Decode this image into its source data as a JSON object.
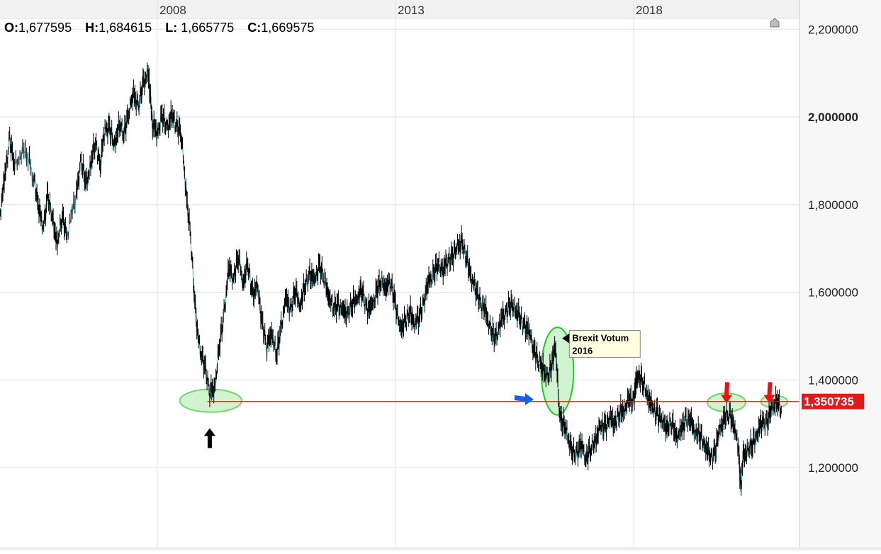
{
  "ohlc": {
    "open_label": "O:",
    "open_value": "1,677595",
    "high_label": "H:",
    "high_value": "1,684615",
    "low_label": "L:",
    "low_value": "1,665775",
    "close_label": "C:",
    "close_value": "1,669575"
  },
  "chart_data": {
    "type": "line",
    "x_ticks": [
      "2008",
      "2013",
      "2018"
    ],
    "y_ticks": [
      "2,200000",
      "2,000000",
      "1,800000",
      "1,600000",
      "1,400000",
      "1,200000"
    ],
    "y_tick_values": [
      2.2,
      2.0,
      1.8,
      1.6,
      1.4,
      1.2
    ],
    "bold_y_tick": "2,000000",
    "ylim": [
      1.05,
      2.25
    ],
    "xlim": [
      2004.7,
      2021.4
    ],
    "grid": true,
    "series": [
      {
        "color": "#000000",
        "points": [
          [
            2004.7,
            1.78
          ],
          [
            2004.8,
            1.86
          ],
          [
            2004.9,
            1.95
          ],
          [
            2005.0,
            1.88
          ],
          [
            2005.2,
            1.93
          ],
          [
            2005.4,
            1.86
          ],
          [
            2005.5,
            1.8
          ],
          [
            2005.6,
            1.74
          ],
          [
            2005.7,
            1.82
          ],
          [
            2005.8,
            1.76
          ],
          [
            2005.9,
            1.71
          ],
          [
            2006.0,
            1.77
          ],
          [
            2006.1,
            1.73
          ],
          [
            2006.3,
            1.82
          ],
          [
            2006.4,
            1.9
          ],
          [
            2006.5,
            1.84
          ],
          [
            2006.6,
            1.89
          ],
          [
            2006.7,
            1.94
          ],
          [
            2006.8,
            1.89
          ],
          [
            2006.9,
            1.97
          ],
          [
            2007.0,
            1.97
          ],
          [
            2007.1,
            1.93
          ],
          [
            2007.2,
            1.98
          ],
          [
            2007.3,
            1.96
          ],
          [
            2007.4,
            2.01
          ],
          [
            2007.5,
            2.05
          ],
          [
            2007.6,
            2.02
          ],
          [
            2007.7,
            2.07
          ],
          [
            2007.8,
            2.1
          ],
          [
            2007.85,
            2.05
          ],
          [
            2007.9,
            1.98
          ],
          [
            2008.0,
            1.96
          ],
          [
            2008.1,
            2.0
          ],
          [
            2008.2,
            1.97
          ],
          [
            2008.3,
            2.0
          ],
          [
            2008.4,
            1.98
          ],
          [
            2008.5,
            1.96
          ],
          [
            2008.6,
            1.83
          ],
          [
            2008.7,
            1.72
          ],
          [
            2008.8,
            1.55
          ],
          [
            2008.9,
            1.46
          ],
          [
            2009.0,
            1.43
          ],
          [
            2009.1,
            1.37
          ],
          [
            2009.2,
            1.38
          ],
          [
            2009.3,
            1.47
          ],
          [
            2009.4,
            1.55
          ],
          [
            2009.5,
            1.65
          ],
          [
            2009.6,
            1.63
          ],
          [
            2009.7,
            1.68
          ],
          [
            2009.8,
            1.62
          ],
          [
            2009.9,
            1.66
          ],
          [
            2010.0,
            1.59
          ],
          [
            2010.1,
            1.61
          ],
          [
            2010.2,
            1.53
          ],
          [
            2010.3,
            1.47
          ],
          [
            2010.4,
            1.51
          ],
          [
            2010.5,
            1.45
          ],
          [
            2010.6,
            1.52
          ],
          [
            2010.7,
            1.58
          ],
          [
            2010.8,
            1.56
          ],
          [
            2010.9,
            1.6
          ],
          [
            2011.0,
            1.57
          ],
          [
            2011.1,
            1.61
          ],
          [
            2011.2,
            1.64
          ],
          [
            2011.3,
            1.62
          ],
          [
            2011.4,
            1.66
          ],
          [
            2011.5,
            1.63
          ],
          [
            2011.6,
            1.59
          ],
          [
            2011.7,
            1.56
          ],
          [
            2011.8,
            1.57
          ],
          [
            2011.9,
            1.55
          ],
          [
            2012.0,
            1.55
          ],
          [
            2012.1,
            1.57
          ],
          [
            2012.2,
            1.59
          ],
          [
            2012.3,
            1.6
          ],
          [
            2012.4,
            1.56
          ],
          [
            2012.5,
            1.56
          ],
          [
            2012.6,
            1.6
          ],
          [
            2012.7,
            1.62
          ],
          [
            2012.8,
            1.61
          ],
          [
            2012.9,
            1.62
          ],
          [
            2013.0,
            1.57
          ],
          [
            2013.1,
            1.51
          ],
          [
            2013.2,
            1.53
          ],
          [
            2013.3,
            1.55
          ],
          [
            2013.4,
            1.53
          ],
          [
            2013.5,
            1.54
          ],
          [
            2013.6,
            1.58
          ],
          [
            2013.7,
            1.62
          ],
          [
            2013.8,
            1.64
          ],
          [
            2013.9,
            1.66
          ],
          [
            2014.0,
            1.65
          ],
          [
            2014.1,
            1.67
          ],
          [
            2014.2,
            1.68
          ],
          [
            2014.3,
            1.7
          ],
          [
            2014.4,
            1.71
          ],
          [
            2014.5,
            1.67
          ],
          [
            2014.6,
            1.63
          ],
          [
            2014.7,
            1.6
          ],
          [
            2014.8,
            1.57
          ],
          [
            2014.9,
            1.55
          ],
          [
            2015.0,
            1.51
          ],
          [
            2015.1,
            1.49
          ],
          [
            2015.2,
            1.53
          ],
          [
            2015.3,
            1.55
          ],
          [
            2015.4,
            1.57
          ],
          [
            2015.5,
            1.56
          ],
          [
            2015.6,
            1.54
          ],
          [
            2015.7,
            1.52
          ],
          [
            2015.8,
            1.51
          ],
          [
            2015.9,
            1.47
          ],
          [
            2016.0,
            1.44
          ],
          [
            2016.1,
            1.42
          ],
          [
            2016.2,
            1.4
          ],
          [
            2016.3,
            1.44
          ],
          [
            2016.35,
            1.48
          ],
          [
            2016.45,
            1.32
          ],
          [
            2016.5,
            1.3
          ],
          [
            2016.6,
            1.28
          ],
          [
            2016.7,
            1.23
          ],
          [
            2016.8,
            1.23
          ],
          [
            2016.9,
            1.25
          ],
          [
            2017.0,
            1.22
          ],
          [
            2017.1,
            1.24
          ],
          [
            2017.2,
            1.26
          ],
          [
            2017.3,
            1.29
          ],
          [
            2017.4,
            1.29
          ],
          [
            2017.5,
            1.31
          ],
          [
            2017.6,
            1.3
          ],
          [
            2017.7,
            1.32
          ],
          [
            2017.8,
            1.33
          ],
          [
            2017.9,
            1.35
          ],
          [
            2018.0,
            1.35
          ],
          [
            2018.05,
            1.39
          ],
          [
            2018.1,
            1.41
          ],
          [
            2018.2,
            1.39
          ],
          [
            2018.3,
            1.36
          ],
          [
            2018.4,
            1.33
          ],
          [
            2018.5,
            1.32
          ],
          [
            2018.6,
            1.3
          ],
          [
            2018.7,
            1.29
          ],
          [
            2018.8,
            1.3
          ],
          [
            2018.9,
            1.27
          ],
          [
            2019.0,
            1.28
          ],
          [
            2019.1,
            1.31
          ],
          [
            2019.2,
            1.3
          ],
          [
            2019.3,
            1.28
          ],
          [
            2019.4,
            1.27
          ],
          [
            2019.5,
            1.25
          ],
          [
            2019.6,
            1.22
          ],
          [
            2019.7,
            1.23
          ],
          [
            2019.8,
            1.28
          ],
          [
            2019.9,
            1.31
          ],
          [
            2020.0,
            1.32
          ],
          [
            2020.1,
            1.3
          ],
          [
            2020.2,
            1.24
          ],
          [
            2020.25,
            1.15
          ],
          [
            2020.3,
            1.22
          ],
          [
            2020.4,
            1.24
          ],
          [
            2020.5,
            1.25
          ],
          [
            2020.6,
            1.28
          ],
          [
            2020.7,
            1.3
          ],
          [
            2020.8,
            1.3
          ],
          [
            2020.9,
            1.33
          ],
          [
            2021.0,
            1.35
          ],
          [
            2021.1,
            1.33
          ]
        ]
      }
    ],
    "horizontal_line": {
      "value": 1.350735,
      "label": "1,350735",
      "color": "#dd1111"
    },
    "annotations": [
      {
        "type": "ellipse",
        "cx": 2009.12,
        "cy": 1.3525,
        "rx": 0.65,
        "ry": 0.026,
        "stroke": "#6fd66f",
        "fill": "#c8f2c8"
      },
      {
        "type": "ellipse",
        "cx": 2016.4,
        "cy": 1.42,
        "rx": 0.34,
        "ry": 0.1,
        "stroke": "#1ecf1e",
        "fill": "#c8f2c8"
      },
      {
        "type": "ellipse",
        "cx": 2019.95,
        "cy": 1.3485,
        "rx": 0.4,
        "ry": 0.021,
        "stroke": "#6fd66f",
        "fill": "#c8f2c8"
      },
      {
        "type": "ellipse",
        "cx": 2020.95,
        "cy": 1.3505,
        "rx": 0.28,
        "ry": 0.014,
        "stroke": "#6fd66f",
        "fill": "#c8f2c8"
      },
      {
        "type": "arrow",
        "direction": "up",
        "color": "#000000",
        "x": 2009.1,
        "y": 1.29
      },
      {
        "type": "arrow",
        "direction": "right",
        "color": "#1a5de8",
        "x": 2015.5,
        "y": 1.365
      },
      {
        "type": "arrow",
        "direction": "down",
        "color": "#ee1111",
        "x": 2019.95,
        "y": 1.395
      },
      {
        "type": "arrow",
        "direction": "down",
        "color": "#ee1111",
        "x": 2020.85,
        "y": 1.395
      }
    ],
    "callout": {
      "line1": "Brexit Votum",
      "line2": "2016",
      "x": 2016.65,
      "y": 1.49
    }
  }
}
